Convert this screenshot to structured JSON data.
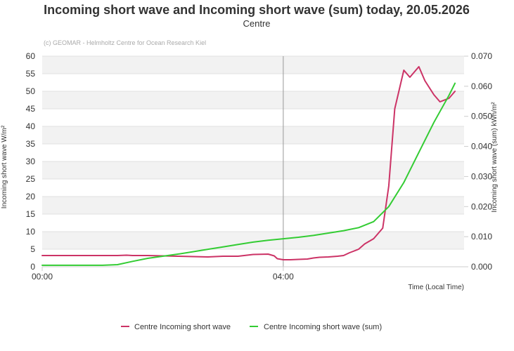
{
  "chart_data": {
    "type": "line",
    "title": "Incoming short wave and Incoming short wave (sum) today, 20.05.2026",
    "subtitle": "Centre",
    "credit": "(c) GEOMAR - Helmholtz Centre for Ocean Research Kiel",
    "xlabel": "Time (Local Time)",
    "ylabel_left": "Incoming short wave W/m²",
    "ylabel_right": "Incoming short wave (sum) kWh/m²",
    "x_tick_labels": [
      "00:00",
      "04:00"
    ],
    "xlim_hours": [
      0,
      7
    ],
    "marker_hour": 4,
    "ylim_left": [
      0,
      60
    ],
    "yticks_left": [
      "0",
      "5",
      "10",
      "15",
      "20",
      "25",
      "30",
      "35",
      "40",
      "45",
      "50",
      "55",
      "60"
    ],
    "ylim_right": [
      0,
      0.07
    ],
    "yticks_right": [
      "0.000",
      "0.010",
      "0.020",
      "0.030",
      "0.040",
      "0.050",
      "0.060",
      "0.070"
    ],
    "grid": true,
    "legend_position": "bottom",
    "series": [
      {
        "name": "Centre Incoming short wave",
        "axis": "left",
        "color": "#cc3366",
        "x": [
          0.0,
          0.25,
          0.5,
          0.75,
          1.0,
          1.25,
          1.4,
          1.5,
          1.75,
          2.0,
          2.25,
          2.5,
          2.75,
          3.0,
          3.25,
          3.5,
          3.75,
          3.85,
          3.9,
          4.0,
          4.12,
          4.25,
          4.4,
          4.5,
          4.6,
          4.75,
          4.9,
          5.0,
          5.1,
          5.25,
          5.35,
          5.5,
          5.65,
          5.75,
          5.85,
          6.0,
          6.1,
          6.25,
          6.35,
          6.5,
          6.6,
          6.75,
          6.85
        ],
        "values": [
          3.2,
          3.2,
          3.2,
          3.2,
          3.2,
          3.2,
          3.3,
          3.2,
          3.2,
          3.1,
          3.0,
          2.9,
          2.8,
          3.0,
          3.0,
          3.5,
          3.6,
          3.1,
          2.3,
          2.0,
          2.0,
          2.1,
          2.2,
          2.5,
          2.7,
          2.8,
          3.0,
          3.2,
          4.0,
          5.0,
          6.5,
          8.0,
          11.0,
          23.0,
          45.0,
          56.0,
          54.0,
          57.0,
          53.0,
          49.0,
          47.0,
          48.0,
          50.0
        ]
      },
      {
        "name": "Centre Incoming short wave (sum)",
        "axis": "right",
        "color": "#33cc33",
        "x": [
          0.0,
          0.25,
          0.5,
          0.75,
          1.0,
          1.25,
          1.5,
          1.75,
          2.0,
          2.25,
          2.5,
          2.75,
          3.0,
          3.25,
          3.5,
          3.75,
          4.0,
          4.25,
          4.5,
          4.75,
          5.0,
          5.25,
          5.5,
          5.75,
          6.0,
          6.25,
          6.5,
          6.75,
          6.85
        ],
        "values": [
          0.0005,
          0.0005,
          0.0005,
          0.0005,
          0.0005,
          0.0007,
          0.0018,
          0.0028,
          0.0035,
          0.0042,
          0.005,
          0.0058,
          0.0066,
          0.0074,
          0.0082,
          0.0088,
          0.0093,
          0.0098,
          0.0104,
          0.0112,
          0.012,
          0.013,
          0.015,
          0.02,
          0.028,
          0.038,
          0.048,
          0.057,
          0.061
        ]
      }
    ]
  }
}
